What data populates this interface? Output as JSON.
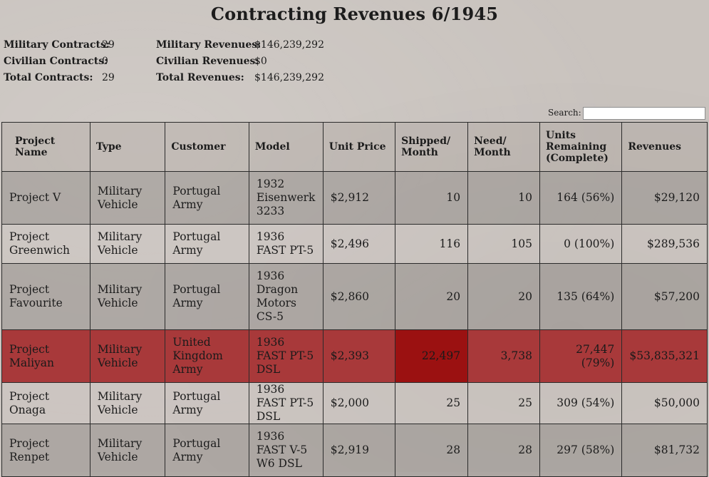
{
  "title": "Contracting Revenues 6/1945",
  "summary": {
    "military_contracts_label": "Military Contracts:",
    "military_contracts": "29",
    "civilian_contracts_label": "Civilian Contracts:",
    "civilian_contracts": "0",
    "total_contracts_label": "Total Contracts:",
    "total_contracts": "29",
    "military_revenues_label": "Military Revenues:",
    "military_revenues": "$146,239,292",
    "civilian_revenues_label": "Civilian Revenues:",
    "civilian_revenues": "$0",
    "total_revenues_label": "Total Revenues:",
    "total_revenues": "$146,239,292"
  },
  "search": {
    "label": "Search:",
    "value": ""
  },
  "table": {
    "headers": {
      "project": "Project Name",
      "type": "Type",
      "customer": "Customer",
      "model": "Model",
      "unit_price": "Unit Price",
      "shipped": "Shipped/ Month",
      "need": "Need/ Month",
      "remaining": "Units Remaining (Complete)",
      "revenues": "Revenues"
    },
    "rows": [
      {
        "project": "Project V",
        "type": "Military Vehicle",
        "customer": "Portugal Army",
        "model": "1932 Eisenwerk 3233",
        "unit_price": "$2,912",
        "shipped": "10",
        "need": "10",
        "remaining": "164 (56%)",
        "revenues": "$29,120"
      },
      {
        "project": "Project Greenwich",
        "type": "Military Vehicle",
        "customer": "Portugal Army",
        "model": "1936 FAST PT-5",
        "unit_price": "$2,496",
        "shipped": "116",
        "need": "105",
        "remaining": "0 (100%)",
        "revenues": "$289,536"
      },
      {
        "project": "Project Favourite",
        "type": "Military Vehicle",
        "customer": "Portugal Army",
        "model": "1936 Dragon Motors CS-5",
        "unit_price": "$2,860",
        "shipped": "20",
        "need": "20",
        "remaining": "135 (64%)",
        "revenues": "$57,200"
      },
      {
        "project": "Project Maliyan",
        "type": "Military Vehicle",
        "customer": "United Kingdom Army",
        "model": "1936 FAST PT-5 DSL",
        "unit_price": "$2,393",
        "shipped": "22,497",
        "need": "3,738",
        "remaining": "27,447 (79%)",
        "revenues": "$53,835,321"
      },
      {
        "project": "Project Onaga",
        "type": "Military Vehicle",
        "customer": "Portugal Army",
        "model": "1936 FAST PT-5 DSL",
        "unit_price": "$2,000",
        "shipped": "25",
        "need": "25",
        "remaining": "309 (54%)",
        "revenues": "$50,000"
      },
      {
        "project": "Project Renpet",
        "type": "Military Vehicle",
        "customer": "Portugal Army",
        "model": "1936 FAST V-5 W6 DSL",
        "unit_price": "$2,919",
        "shipped": "28",
        "need": "28",
        "remaining": "297 (58%)",
        "revenues": "$81,732"
      }
    ]
  }
}
